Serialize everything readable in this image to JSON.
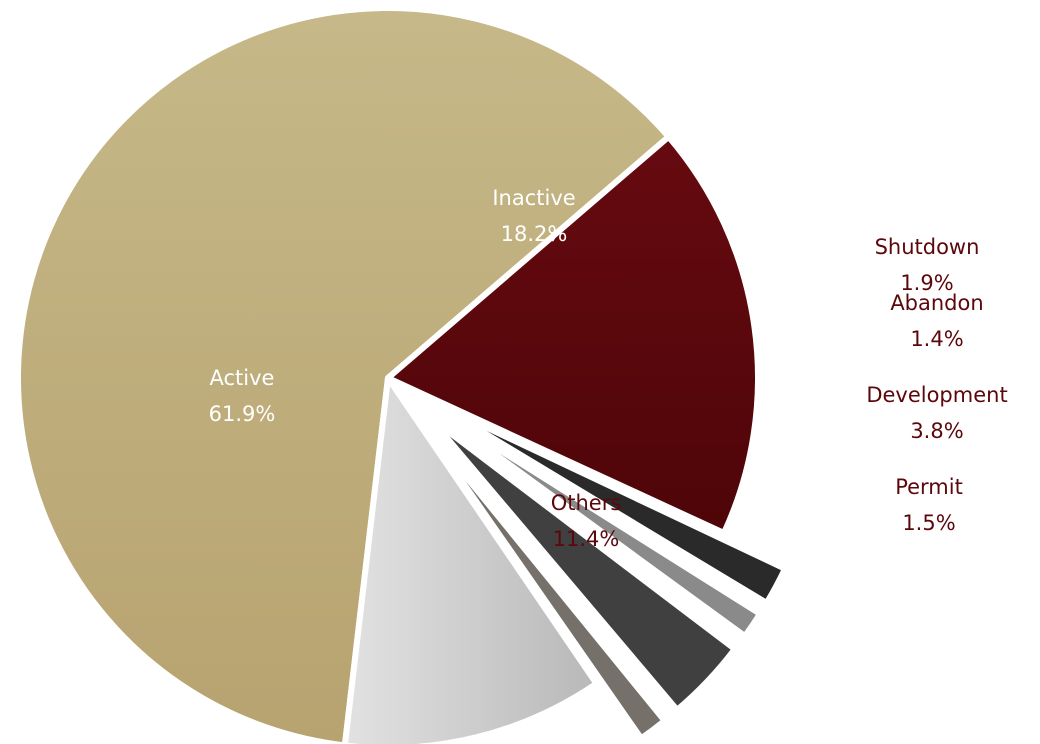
{
  "chart_data": {
    "type": "pie",
    "slices": [
      {
        "name": "Active",
        "label": "Active",
        "value_label": "61.9%",
        "value": 61.9,
        "color": "#c0ae7c",
        "label_color": "#ffffff"
      },
      {
        "name": "Inactive",
        "label": "Inactive",
        "value_label": "18.2%",
        "value": 18.2,
        "color": "#5c070c",
        "label_color": "#ffffff"
      },
      {
        "name": "Shutdown",
        "label": "Shutdown",
        "value_label": "1.9%",
        "value": 1.9,
        "color": "#2a2a2a",
        "label_color": "#5c070c",
        "exploded": true
      },
      {
        "name": "Abandon",
        "label": "Abandon",
        "value_label": "1.4%",
        "value": 1.4,
        "color": "#8a8a8a",
        "label_color": "#5c070c",
        "exploded": true
      },
      {
        "name": "Development",
        "label": "Development",
        "value_label": "3.8%",
        "value": 3.8,
        "color": "#404040",
        "label_color": "#5c070c",
        "exploded": true
      },
      {
        "name": "Permit",
        "label": "Permit",
        "value_label": "1.5%",
        "value": 1.5,
        "color": "#75706a",
        "label_color": "#5c070c",
        "exploded": true
      },
      {
        "name": "Others",
        "label": "Others",
        "value_label": "11.4%",
        "value": 11.4,
        "color": "#cfcfcf",
        "label_color": "#5c070c"
      }
    ]
  }
}
